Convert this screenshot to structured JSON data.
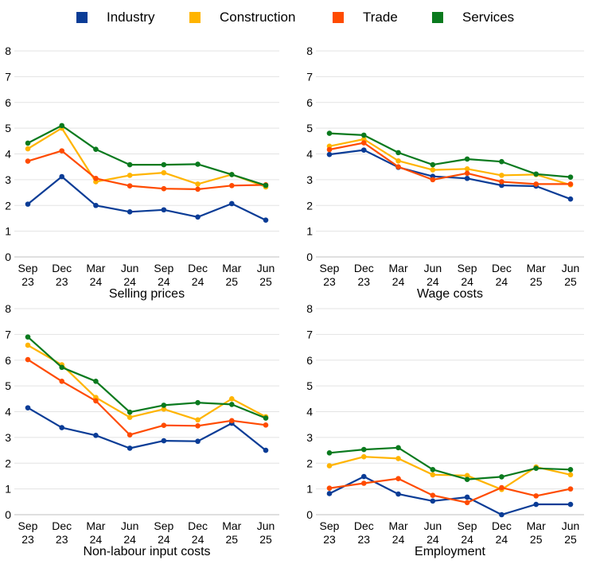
{
  "legend": [
    {
      "name": "Industry",
      "color": "#0a3c96"
    },
    {
      "name": "Construction",
      "color": "#ffb400"
    },
    {
      "name": "Trade",
      "color": "#ff4b00"
    },
    {
      "name": "Services",
      "color": "#0a7a1e"
    }
  ],
  "chart_data": [
    {
      "type": "line",
      "title": "Selling prices",
      "x": [
        "Sep 23",
        "Dec 23",
        "Mar 24",
        "Jun 24",
        "Sep 24",
        "Dec 24",
        "Mar 25",
        "Jun 25"
      ],
      "ylim": [
        0,
        8
      ],
      "yticks": [
        0,
        1,
        2,
        3,
        4,
        5,
        6,
        7,
        8
      ],
      "grid": true,
      "legend": "top",
      "series": [
        {
          "name": "Industry",
          "values": [
            2.05,
            3.12,
            2.0,
            1.75,
            1.83,
            1.55,
            2.07,
            1.43
          ]
        },
        {
          "name": "Construction",
          "values": [
            4.2,
            5.0,
            2.92,
            3.17,
            3.27,
            2.83,
            3.2,
            2.72
          ]
        },
        {
          "name": "Trade",
          "values": [
            3.72,
            4.12,
            3.05,
            2.76,
            2.65,
            2.63,
            2.77,
            2.8
          ]
        },
        {
          "name": "Services",
          "values": [
            4.42,
            5.1,
            4.18,
            3.58,
            3.58,
            3.6,
            3.2,
            2.78
          ]
        }
      ]
    },
    {
      "type": "line",
      "title": "Wage costs",
      "x": [
        "Sep 23",
        "Dec 23",
        "Mar 24",
        "Jun 24",
        "Sep 24",
        "Dec 24",
        "Mar 25",
        "Jun 25"
      ],
      "ylim": [
        0,
        8
      ],
      "yticks": [
        0,
        1,
        2,
        3,
        4,
        5,
        6,
        7,
        8
      ],
      "grid": true,
      "legend": "top",
      "series": [
        {
          "name": "Industry",
          "values": [
            3.98,
            4.15,
            3.48,
            3.13,
            3.05,
            2.78,
            2.75,
            2.25
          ]
        },
        {
          "name": "Construction",
          "values": [
            4.3,
            4.57,
            3.73,
            3.38,
            3.42,
            3.17,
            3.2,
            2.8
          ]
        },
        {
          "name": "Trade",
          "values": [
            4.17,
            4.43,
            3.5,
            3.0,
            3.25,
            2.92,
            2.83,
            2.83
          ]
        },
        {
          "name": "Services",
          "values": [
            4.8,
            4.73,
            4.05,
            3.58,
            3.8,
            3.7,
            3.22,
            3.1
          ]
        }
      ]
    },
    {
      "type": "line",
      "title": "Non-labour input costs",
      "x": [
        "Sep 23",
        "Dec 23",
        "Mar 24",
        "Jun 24",
        "Sep 24",
        "Dec 24",
        "Mar 25",
        "Jun 25"
      ],
      "ylim": [
        0,
        8
      ],
      "yticks": [
        0,
        1,
        2,
        3,
        4,
        5,
        6,
        7,
        8
      ],
      "grid": true,
      "legend": "top",
      "series": [
        {
          "name": "Industry",
          "values": [
            4.15,
            3.38,
            3.08,
            2.58,
            2.87,
            2.85,
            3.55,
            2.5
          ]
        },
        {
          "name": "Construction",
          "values": [
            6.58,
            5.82,
            4.55,
            3.78,
            4.1,
            3.68,
            4.5,
            3.8
          ]
        },
        {
          "name": "Trade",
          "values": [
            6.02,
            5.18,
            4.42,
            3.1,
            3.47,
            3.45,
            3.65,
            3.48
          ]
        },
        {
          "name": "Services",
          "values": [
            6.9,
            5.72,
            5.18,
            3.98,
            4.25,
            4.35,
            4.28,
            3.75
          ]
        }
      ]
    },
    {
      "type": "line",
      "title": "Employment",
      "x": [
        "Sep 23",
        "Dec 23",
        "Mar 24",
        "Jun 24",
        "Sep 24",
        "Dec 24",
        "Mar 25",
        "Jun 25"
      ],
      "ylim": [
        0,
        8
      ],
      "yticks": [
        0,
        1,
        2,
        3,
        4,
        5,
        6,
        7,
        8
      ],
      "grid": true,
      "legend": "top",
      "series": [
        {
          "name": "Industry",
          "values": [
            0.82,
            1.48,
            0.8,
            0.53,
            0.68,
            0.0,
            0.4,
            0.4
          ]
        },
        {
          "name": "Construction",
          "values": [
            1.9,
            2.25,
            2.18,
            1.55,
            1.52,
            0.98,
            1.85,
            1.55
          ]
        },
        {
          "name": "Trade",
          "values": [
            1.03,
            1.22,
            1.4,
            0.75,
            0.47,
            1.05,
            0.73,
            1.0
          ]
        },
        {
          "name": "Services",
          "values": [
            2.4,
            2.53,
            2.6,
            1.75,
            1.37,
            1.47,
            1.8,
            1.75
          ]
        }
      ]
    }
  ]
}
